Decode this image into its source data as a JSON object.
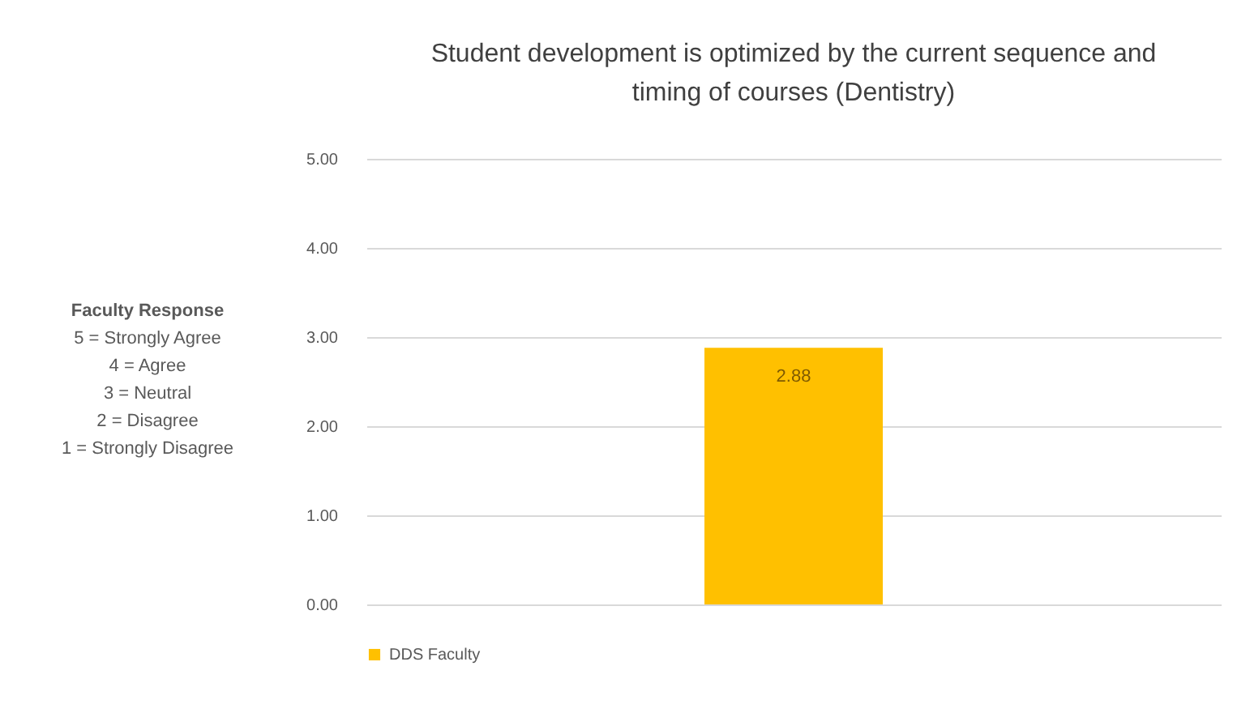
{
  "chart_data": {
    "type": "bar",
    "title": "Student development is optimized by the current sequence and timing of courses (Dentistry)",
    "categories": [
      null
    ],
    "series": [
      {
        "name": "DDS Faculty",
        "color": "#ffc000",
        "values": [
          2.88
        ]
      }
    ],
    "ylim": [
      0,
      5
    ],
    "yticks": [
      {
        "value": 0,
        "label": "0.00"
      },
      {
        "value": 1,
        "label": "1.00"
      },
      {
        "value": 2,
        "label": "2.00"
      },
      {
        "value": 3,
        "label": "3.00"
      },
      {
        "value": 4,
        "label": "4.00"
      },
      {
        "value": 5,
        "label": "5.00"
      }
    ],
    "grid": "y",
    "legend": "bottom",
    "data_labels": true,
    "tick_labels": "y",
    "annotations": [
      "Faculty Response",
      "5 = Strongly Agree",
      "4 = Agree",
      "3 = Neutral",
      "2 = Disagree",
      "1 = Strongly Disagree"
    ]
  }
}
